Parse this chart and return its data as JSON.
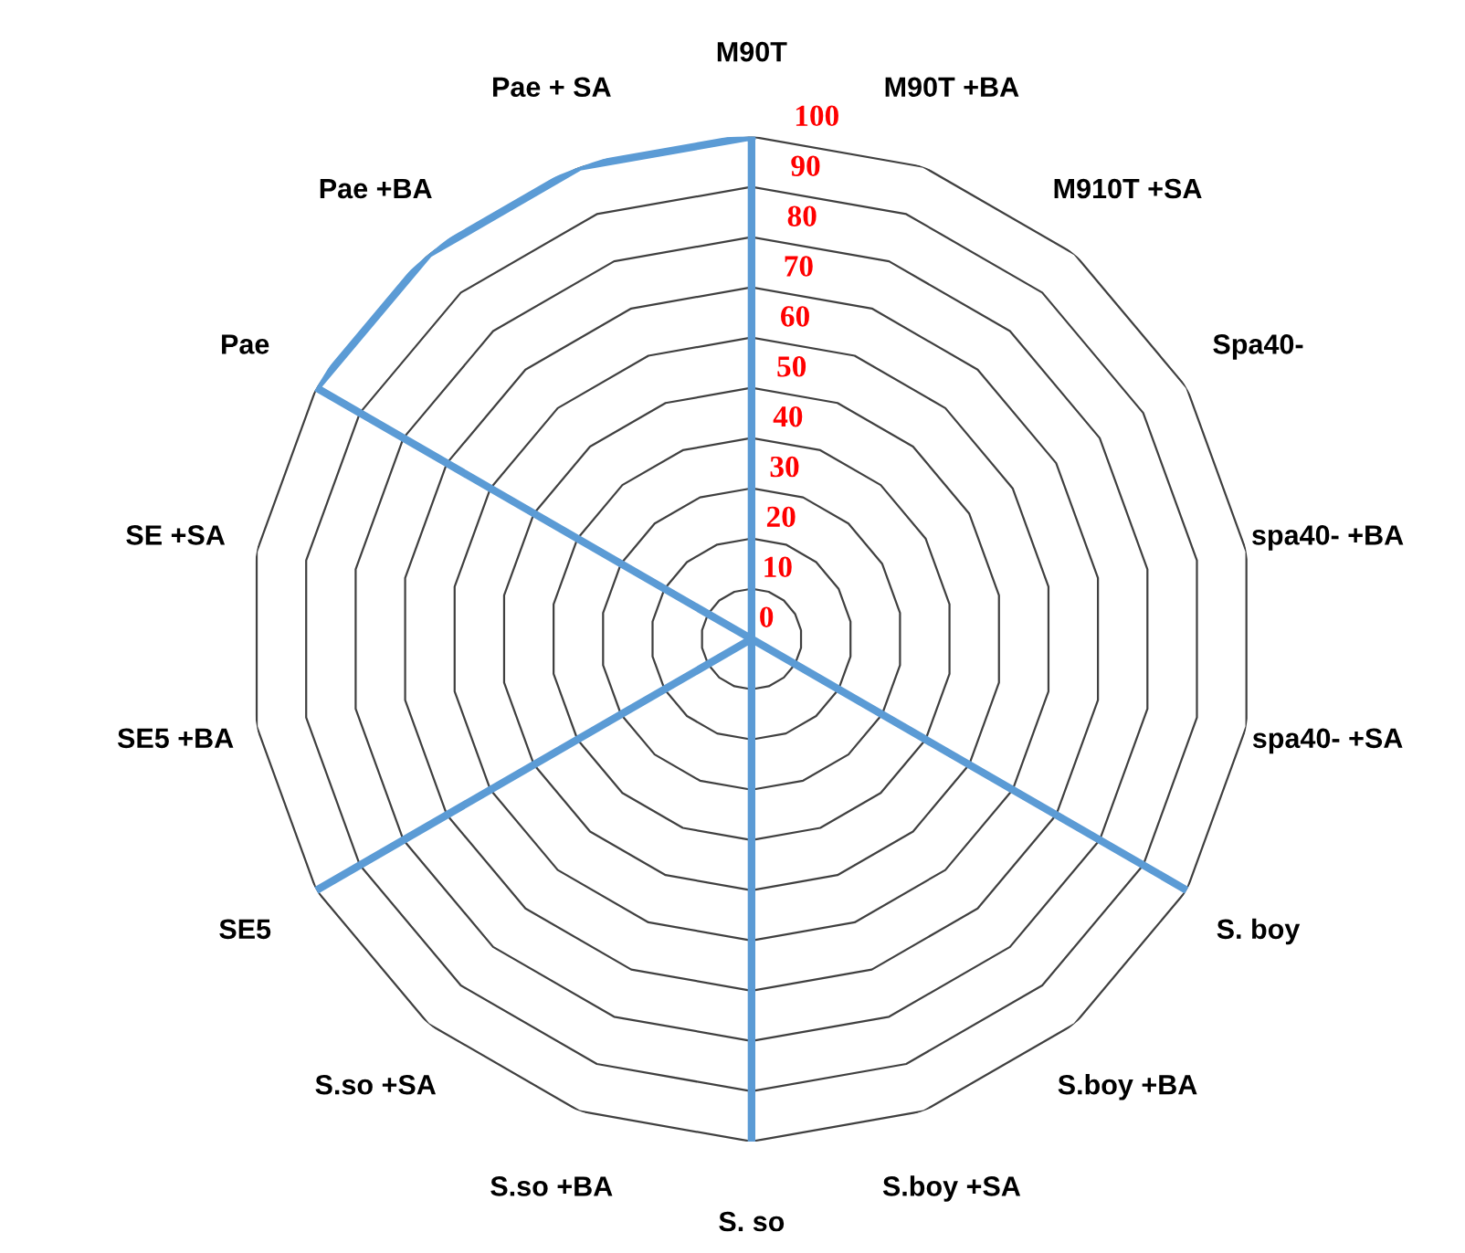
{
  "chart_data": {
    "type": "radar",
    "categories": [
      "M90T",
      "M90T +BA",
      "M910T +SA",
      "Spa40-",
      "spa40- +BA",
      "spa40- +SA",
      "S. boy",
      "S.boy +BA",
      "S.boy +SA",
      "S. so",
      "S.so +BA",
      "S.so +SA",
      "SE5",
      "SE5 +BA",
      "SE +SA",
      "Pae",
      "Pae +BA",
      "Pae + SA"
    ],
    "series": [
      {
        "color": "#5b9bd5",
        "values": [
          100,
          0,
          0,
          0,
          0,
          0,
          100,
          0,
          0,
          100,
          0,
          0,
          100,
          0,
          0,
          100,
          100,
          100
        ]
      }
    ],
    "ylim": [
      0,
      100
    ],
    "yticks": [
      0,
      10,
      20,
      30,
      40,
      50,
      60,
      70,
      80,
      90,
      100
    ],
    "grid": true,
    "line_style": "solid",
    "marker": "none"
  }
}
